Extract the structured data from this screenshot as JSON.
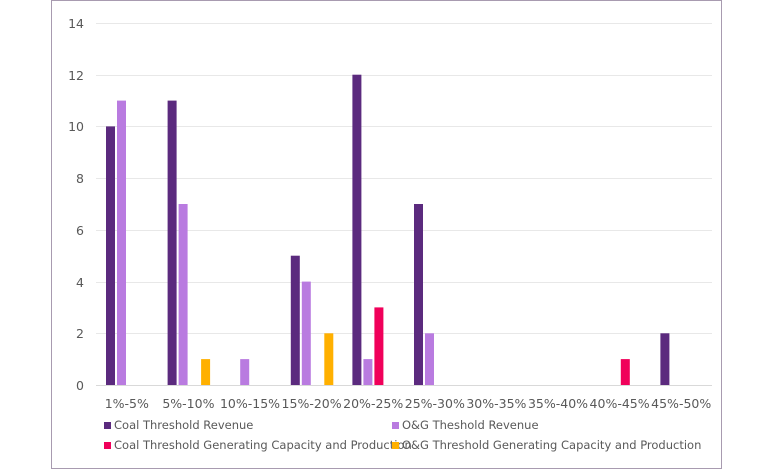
{
  "chart_data": {
    "type": "bar",
    "title": "",
    "xlabel": "",
    "ylabel": "",
    "ylim": [
      0,
      14
    ],
    "yticks": [
      0,
      2,
      4,
      6,
      8,
      10,
      12,
      14
    ],
    "grid": true,
    "legend_position": "bottom",
    "categories": [
      "1%-5%",
      "5%-10%",
      "10%-15%",
      "15%-20%",
      "20%-25%",
      "25%-30%",
      "30%-35%",
      "35%-40%",
      "40%-45%",
      "45%-50%"
    ],
    "series": [
      {
        "name": "Coal Threshold Revenue",
        "color": "#5B2A7E",
        "values": [
          10,
          11,
          0,
          5,
          12,
          7,
          0,
          0,
          0,
          2
        ]
      },
      {
        "name": "O&G Theshold Revenue",
        "color": "#B97BE0",
        "values": [
          11,
          7,
          1,
          4,
          1,
          2,
          0,
          0,
          0,
          0
        ]
      },
      {
        "name": "Coal Threshold Generating Capacity and Production",
        "color": "#F0005A",
        "values": [
          0,
          0,
          0,
          0,
          3,
          0,
          0,
          0,
          1,
          0
        ]
      },
      {
        "name": "O&G Threshold Generating Capacity and Production",
        "color": "#FFB000",
        "values": [
          0,
          1,
          0,
          2,
          0,
          0,
          0,
          0,
          0,
          0
        ]
      }
    ]
  }
}
